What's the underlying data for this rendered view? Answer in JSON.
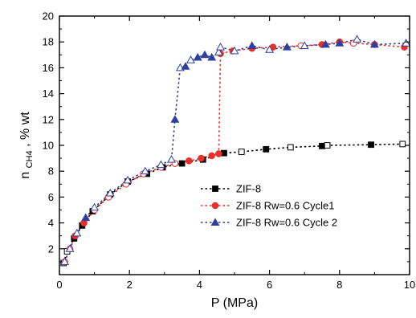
{
  "chart_data": {
    "type": "scatter",
    "xlabel": "P (MPa)",
    "ylabel_main": "n",
    "ylabel_sub": "CH4",
    "ylabel_tail": ", % wt",
    "xlim": [
      0,
      10
    ],
    "ylim": [
      0,
      20
    ],
    "xticks": [
      0,
      2,
      4,
      6,
      8,
      10
    ],
    "yticks": [
      2,
      4,
      6,
      8,
      10,
      12,
      14,
      16,
      18,
      20
    ],
    "grid": false,
    "legend_position": "center-right",
    "series": [
      {
        "name": "ZIF-8",
        "color": "#000000",
        "marker": "square",
        "x": [
          0.12,
          0.22,
          0.42,
          0.65,
          0.95,
          1.45,
          1.95,
          2.5,
          2.95,
          3.5,
          4.1,
          4.7,
          5.2,
          5.9,
          6.6,
          7.5,
          7.65,
          8.9,
          9.8
        ],
        "y": [
          0.9,
          1.8,
          2.8,
          3.8,
          4.9,
          6.2,
          7.2,
          7.8,
          8.3,
          8.6,
          8.9,
          9.4,
          9.5,
          9.7,
          9.85,
          9.95,
          10.0,
          10.05,
          10.1
        ],
        "filled": [
          false,
          false,
          true,
          true,
          true,
          true,
          true,
          true,
          true,
          true,
          true,
          true,
          false,
          true,
          false,
          true,
          false,
          true,
          false
        ]
      },
      {
        "name": "ZIF-8 Rw=0.6 Cycle1",
        "color": "#e8302a",
        "marker": "circle",
        "x": [
          0.15,
          0.3,
          0.45,
          0.7,
          1.0,
          1.4,
          1.9,
          2.4,
          2.9,
          3.3,
          3.7,
          4.05,
          4.35,
          4.55,
          4.6,
          4.95,
          5.5,
          6.1,
          6.9,
          7.5,
          8.0,
          8.4,
          9.0,
          9.85
        ],
        "y": [
          1.0,
          2.0,
          3.0,
          4.0,
          5.0,
          6.0,
          7.0,
          7.8,
          8.3,
          8.6,
          8.8,
          9.0,
          9.2,
          9.35,
          17.1,
          17.3,
          17.5,
          17.6,
          17.7,
          17.8,
          18.0,
          17.9,
          17.8,
          17.6
        ],
        "filled": [
          false,
          false,
          true,
          true,
          false,
          false,
          false,
          false,
          false,
          false,
          true,
          true,
          true,
          true,
          true,
          true,
          true,
          true,
          false,
          true,
          true,
          false,
          true,
          true
        ]
      },
      {
        "name": "ZIF-8 Rw=0.6 Cycle 2",
        "color": "#2f3f9e",
        "marker": "triangle",
        "x": [
          0.15,
          0.3,
          0.5,
          0.75,
          1.0,
          1.45,
          1.95,
          2.45,
          2.9,
          3.2,
          3.3,
          3.45,
          3.6,
          3.75,
          3.95,
          4.15,
          4.35,
          4.55,
          4.6,
          5.0,
          5.5,
          6.0,
          6.5,
          7.0,
          7.6,
          8.0,
          8.5,
          9.0,
          9.9
        ],
        "y": [
          1.0,
          2.0,
          3.2,
          4.4,
          5.2,
          6.3,
          7.3,
          8.0,
          8.5,
          8.9,
          12.0,
          16.0,
          16.1,
          16.6,
          16.8,
          17.0,
          16.8,
          17.2,
          17.6,
          17.3,
          17.7,
          17.4,
          17.6,
          17.7,
          17.8,
          17.9,
          18.2,
          17.8,
          17.9
        ],
        "filled": [
          false,
          false,
          false,
          true,
          false,
          false,
          false,
          false,
          false,
          false,
          true,
          false,
          true,
          false,
          true,
          true,
          true,
          false,
          false,
          false,
          true,
          false,
          true,
          false,
          true,
          true,
          false,
          true,
          false
        ]
      }
    ]
  }
}
